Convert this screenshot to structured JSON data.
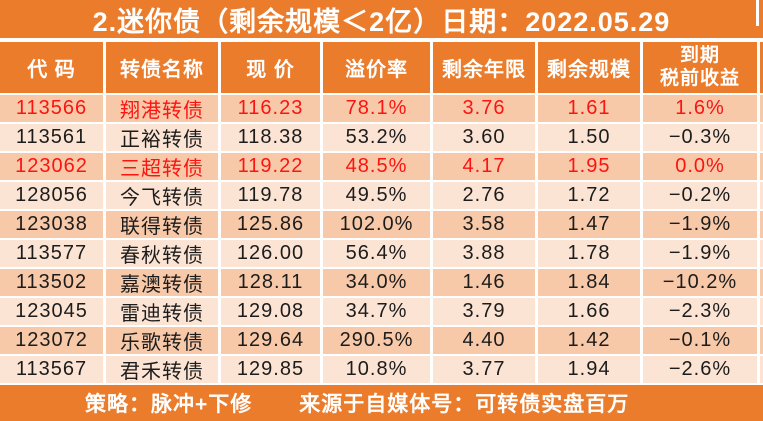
{
  "title": "2.迷你债（剩余规模＜2亿）日期：2022.05.29",
  "colors": {
    "orange": "#ea7c2c",
    "row_dark": "#f7c9a9",
    "row_light": "#fce4d4",
    "red": "#fb1410",
    "text": "#1c1c1c",
    "divider": "#ffffff"
  },
  "table": {
    "columns": [
      {
        "key": "code",
        "label": "代 码"
      },
      {
        "key": "name",
        "label": "转债名称"
      },
      {
        "key": "price",
        "label": "现 价"
      },
      {
        "key": "premium",
        "label": "溢价率"
      },
      {
        "key": "years",
        "label": "剩余年限"
      },
      {
        "key": "scale",
        "label": "剩余规模"
      },
      {
        "key": "yield",
        "label": "到期\n税前收益"
      }
    ],
    "rows": [
      {
        "code": "113566",
        "name": "翔港转债",
        "price": "116.23",
        "premium": "78.1%",
        "years": "3.76",
        "scale": "1.61",
        "yield": "1.6%",
        "highlight": true
      },
      {
        "code": "113561",
        "name": "正裕转债",
        "price": "118.38",
        "premium": "53.2%",
        "years": "3.60",
        "scale": "1.50",
        "yield": "−0.3%",
        "highlight": false
      },
      {
        "code": "123062",
        "name": "三超转债",
        "price": "119.22",
        "premium": "48.5%",
        "years": "4.17",
        "scale": "1.95",
        "yield": "0.0%",
        "highlight": true
      },
      {
        "code": "128056",
        "name": "今飞转债",
        "price": "119.78",
        "premium": "49.5%",
        "years": "2.76",
        "scale": "1.72",
        "yield": "−0.2%",
        "highlight": false
      },
      {
        "code": "123038",
        "name": "联得转债",
        "price": "125.86",
        "premium": "102.0%",
        "years": "3.58",
        "scale": "1.47",
        "yield": "−1.9%",
        "highlight": false
      },
      {
        "code": "113577",
        "name": "春秋转债",
        "price": "126.00",
        "premium": "56.4%",
        "years": "3.88",
        "scale": "1.78",
        "yield": "−1.9%",
        "highlight": false
      },
      {
        "code": "113502",
        "name": "嘉澳转债",
        "price": "128.11",
        "premium": "34.0%",
        "years": "1.46",
        "scale": "1.84",
        "yield": "−10.2%",
        "highlight": false
      },
      {
        "code": "123045",
        "name": "雷迪转债",
        "price": "129.08",
        "premium": "34.7%",
        "years": "3.79",
        "scale": "1.66",
        "yield": "−2.3%",
        "highlight": false
      },
      {
        "code": "123072",
        "name": "乐歌转债",
        "price": "129.64",
        "premium": "290.5%",
        "years": "4.40",
        "scale": "1.42",
        "yield": "−0.1%",
        "highlight": false
      },
      {
        "code": "113567",
        "name": "君禾转债",
        "price": "129.85",
        "premium": "10.8%",
        "years": "3.77",
        "scale": "1.94",
        "yield": "−2.6%",
        "highlight": false
      }
    ]
  },
  "footer": {
    "strategy": "策略：脉冲+下修",
    "source": "来源于自媒体号：可转债实盘百万"
  }
}
